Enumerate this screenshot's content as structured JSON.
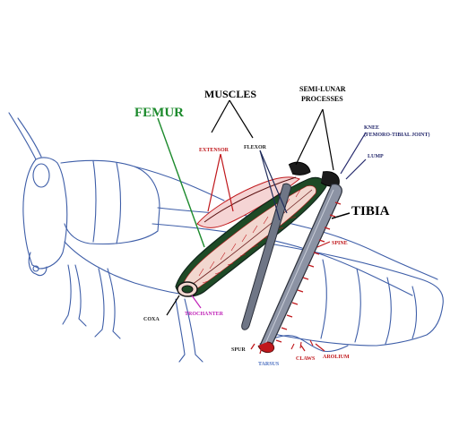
{
  "labels": {
    "femur": "FEMUR",
    "muscles": "MUSCLES",
    "extensor": "EXTENSOR",
    "flexor": "FLEXOR",
    "semi_lunar_line1": "SEMI-LUNAR",
    "semi_lunar_line2": "PROCESSES",
    "knee": "KNEE",
    "knee_note": "(FEMORO-TIBIAL JOINT)",
    "lump": "LUMP",
    "tibia": "TIBIA",
    "spine": "SPINE",
    "coxa": "COXA",
    "trochanter": "TROCHANTER",
    "spur": "SPUR",
    "tarsus": "TARSUS",
    "claws": "CLAWS",
    "arolium": "AROLIUM"
  },
  "colors": {
    "femur_label": "#1c8a2c",
    "muscle_red": "#c0181c",
    "trochanter_magenta": "#c022b8",
    "body_outline": "#3e5ea8",
    "tarsus_blue": "#4a6ec0"
  }
}
